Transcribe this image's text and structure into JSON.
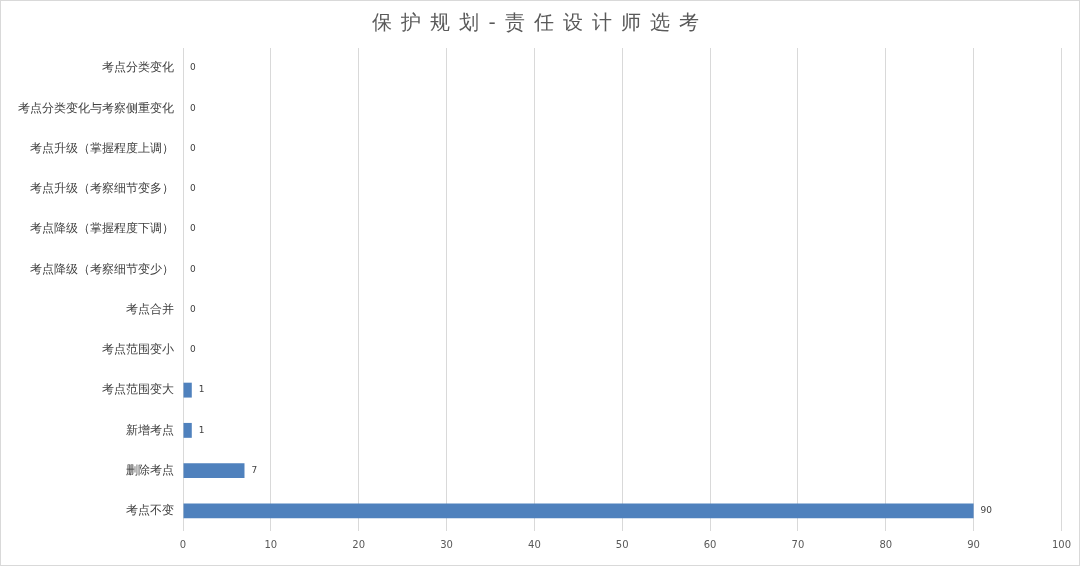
{
  "chart_data": {
    "type": "bar",
    "title": "保护规划-责任设计师选考",
    "orientation": "horizontal",
    "categories": [
      "考点分类变化",
      "考点分类变化与考察侧重变化",
      "考点升级（掌握程度上调）",
      "考点升级（考察细节变多）",
      "考点降级（掌握程度下调）",
      "考点降级（考察细节变少）",
      "考点合并",
      "考点范围变小",
      "考点范围变大",
      "新增考点",
      "删除考点",
      "考点不变"
    ],
    "values": [
      0,
      0,
      0,
      0,
      0,
      0,
      0,
      0,
      1,
      1,
      7,
      90
    ],
    "color": "#4f81bd",
    "xlim": [
      0,
      100
    ],
    "xticks": [
      0,
      10,
      20,
      30,
      40,
      50,
      60,
      70,
      80,
      90,
      100
    ],
    "grid": "x",
    "data_labels": true,
    "legend": false
  }
}
